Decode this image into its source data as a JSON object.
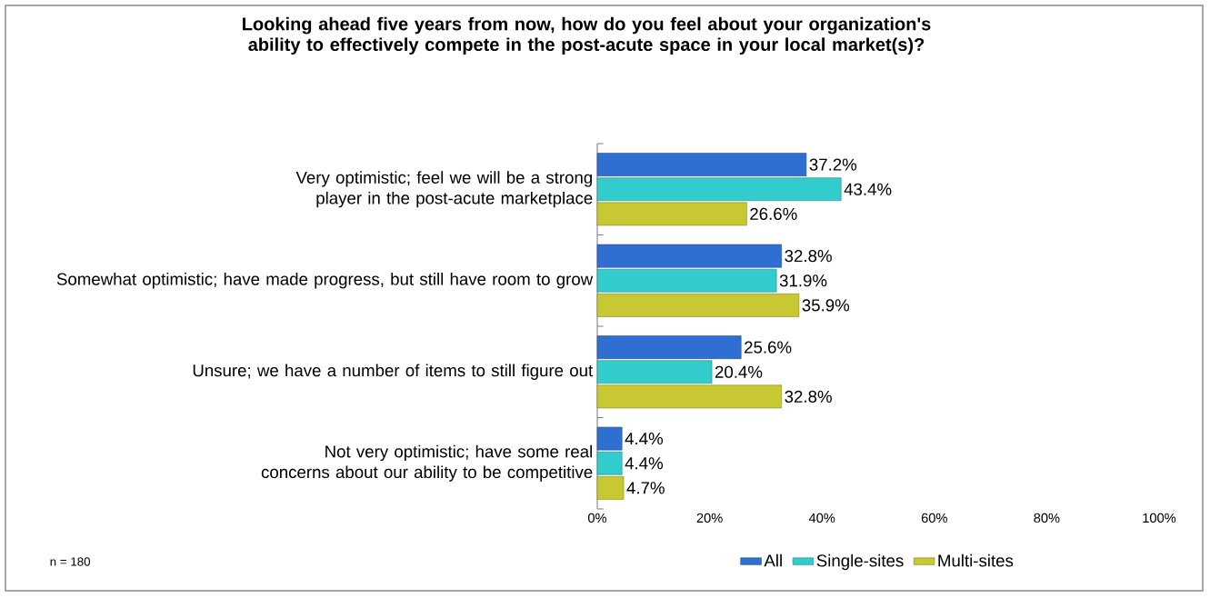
{
  "chart_data": {
    "type": "bar",
    "orientation": "horizontal",
    "title": "Looking ahead five years from now, how do you feel about your organization's ability to effectively compete in the post-acute space in your local market(s)?",
    "categories": [
      "Very optimistic; feel we will be a strong player in the post-acute marketplace",
      "Somewhat optimistic; have made progress, but still have room to grow",
      "Unsure; we have a number of items to still figure out",
      "Not very optimistic; have some real concerns about our ability to be competitive"
    ],
    "series": [
      {
        "name": "All",
        "color": "#2e6fd1",
        "values": [
          37.2,
          32.8,
          25.6,
          4.4
        ],
        "value_labels": [
          "37.2%",
          "32.8%",
          "25.6%",
          "4.4%"
        ]
      },
      {
        "name": "Single-sites",
        "color": "#33cccc",
        "values": [
          43.4,
          31.9,
          20.4,
          4.4
        ],
        "value_labels": [
          "43.4%",
          "31.9%",
          "20.4%",
          "4.4%"
        ]
      },
      {
        "name": "Multi-sites",
        "color": "#c8c832",
        "values": [
          26.6,
          35.9,
          32.8,
          4.7
        ],
        "value_labels": [
          "26.6%",
          "35.9%",
          "32.8%",
          "4.7%"
        ]
      }
    ],
    "xlim": [
      0,
      100
    ],
    "xticks": [
      {
        "value": 0,
        "label": "0%"
      },
      {
        "value": 20,
        "label": "20%"
      },
      {
        "value": 40,
        "label": "40%"
      },
      {
        "value": 60,
        "label": "60%"
      },
      {
        "value": 80,
        "label": "80%"
      },
      {
        "value": 100,
        "label": "100%"
      }
    ],
    "legend": "bottom",
    "annotations": [
      "n = 180"
    ]
  }
}
